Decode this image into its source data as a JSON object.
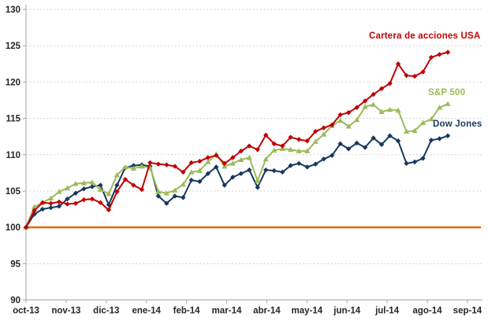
{
  "chart_data": {
    "type": "line",
    "title": "",
    "description": "Evolucion base 100 de Cartera de acciones USA vs S&P 500 vs Dow Jones, oct-13 a sep-14",
    "x_axis": {
      "tick_labels": [
        "oct-13",
        "nov-13",
        "dic-13",
        "ene-14",
        "feb-14",
        "mar-14",
        "abr-14",
        "may-14",
        "jun-14",
        "jul-14",
        "ago-14",
        "sep-14"
      ]
    },
    "y_axis": {
      "min": 90,
      "max": 130,
      "ticks": [
        90,
        95,
        100,
        105,
        110,
        115,
        120,
        125,
        130
      ]
    },
    "grid": "horizontal-dotted",
    "legend_position": "inline-right",
    "baseline": {
      "name": "base-100-line",
      "value": 100,
      "color": "#E36C09"
    },
    "series": [
      {
        "name": "Dow Jones",
        "color": "#17375E",
        "marker": "diamond",
        "values": [
          100.0,
          101.8,
          102.5,
          102.7,
          102.9,
          103.9,
          104.7,
          105.3,
          105.6,
          105.8,
          103.1,
          105.8,
          108.2,
          108.5,
          108.6,
          108.4,
          104.3,
          103.3,
          104.3,
          104.1,
          106.5,
          106.3,
          107.4,
          108.3,
          105.8,
          106.9,
          107.4,
          107.9,
          105.5,
          107.9,
          107.8,
          107.6,
          108.5,
          108.8,
          108.3,
          108.7,
          109.4,
          109.9,
          111.5,
          110.8,
          111.6,
          111.0,
          112.3,
          111.4,
          112.6,
          111.9,
          108.8,
          109.0,
          109.5,
          112.0,
          112.2,
          112.6
        ]
      },
      {
        "name": "S&P 500",
        "color": "#9BBB59",
        "marker": "triangle",
        "values": [
          100.0,
          102.8,
          103.4,
          104.0,
          104.9,
          105.4,
          106.0,
          106.1,
          106.2,
          105.2,
          104.6,
          107.2,
          108.3,
          108.1,
          108.4,
          108.2,
          104.9,
          104.7,
          105.1,
          105.9,
          107.6,
          107.8,
          109.0,
          110.1,
          108.4,
          108.8,
          109.3,
          109.6,
          106.4,
          109.4,
          110.6,
          110.8,
          110.7,
          110.5,
          110.5,
          111.8,
          112.8,
          114.0,
          114.7,
          113.9,
          114.8,
          116.6,
          116.9,
          115.9,
          116.2,
          116.1,
          113.2,
          113.3,
          114.4,
          114.9,
          116.5,
          117.0
        ]
      },
      {
        "name": "Cartera de acciones USA",
        "color": "#C00000",
        "marker": "diamond",
        "values": [
          100.0,
          102.3,
          103.4,
          103.3,
          103.5,
          103.2,
          103.3,
          103.8,
          103.9,
          103.4,
          102.4,
          104.9,
          106.6,
          105.8,
          105.2,
          108.9,
          108.7,
          108.6,
          108.4,
          107.6,
          108.9,
          109.1,
          109.6,
          109.9,
          108.8,
          109.6,
          110.5,
          111.2,
          110.7,
          112.7,
          111.5,
          111.2,
          112.4,
          112.1,
          111.9,
          113.2,
          113.7,
          114.1,
          115.5,
          115.8,
          116.5,
          117.4,
          118.3,
          119.1,
          119.8,
          122.5,
          120.9,
          120.8,
          121.4,
          123.4,
          123.8,
          124.1
        ]
      }
    ],
    "axis_text_color": "#262626",
    "gridline_color": "#c6c6c6",
    "axis_line_color": "#a6a6a6"
  }
}
